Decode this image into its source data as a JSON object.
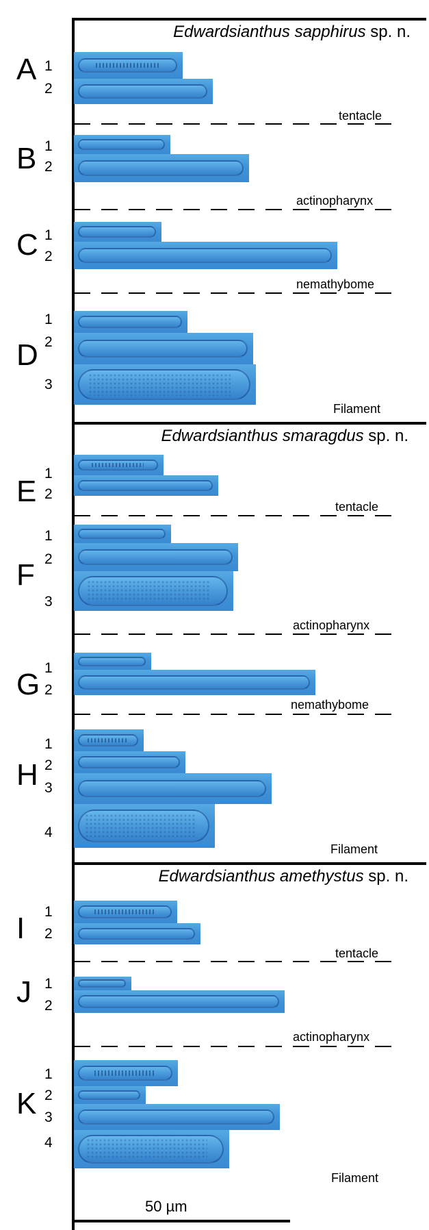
{
  "sections": [
    {
      "genus": "Edwardsianthus",
      "epithet": "sapphirus",
      "suffix": "sp. n."
    },
    {
      "genus": "Edwardsianthus",
      "epithet": "smaragdus",
      "suffix": "sp. n."
    },
    {
      "genus": "Edwardsianthus",
      "epithet": "amethystus",
      "suffix": "sp. n."
    }
  ],
  "panels": [
    "A",
    "B",
    "C",
    "D",
    "E",
    "F",
    "G",
    "H",
    "I",
    "J",
    "K"
  ],
  "numbers": [
    "1",
    "2",
    "3",
    "4"
  ],
  "tissues": {
    "tentacle": "tentacle",
    "actinopharynx": "actinopharynx",
    "nemathybome": "nemathybome",
    "filament": "Filament"
  },
  "scale_bar": {
    "label": "50 µm"
  }
}
